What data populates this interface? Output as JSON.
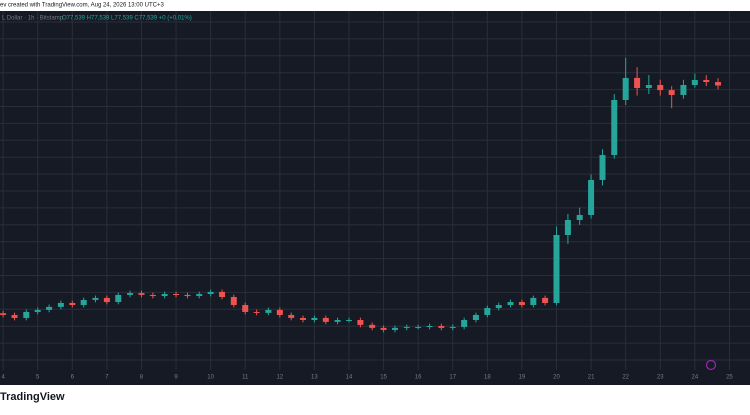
{
  "chart_data": {
    "type": "candlestick",
    "caption": "ev created with TradingView.com, Aug 24, 2026 13:00 UTC+3",
    "symbol": "L Dollar · 1h · Bitstamp",
    "ohlc_readout": "O77,539 H77,539 L77,539 C77,539 +0 (+0.01%)",
    "brand": "TradingView",
    "up_color": "#26a69a",
    "down_color": "#ef5350",
    "grid": true,
    "xlim": [
      3.91,
      25.45
    ],
    "ylim": [
      59500,
      82200
    ],
    "xticks": [
      4,
      5,
      6,
      7,
      8,
      9,
      10,
      11,
      12,
      13,
      14,
      15,
      16,
      17,
      18,
      19,
      20,
      21,
      22,
      23,
      24,
      25
    ],
    "x": [
      4,
      4.33,
      4.67,
      5,
      5.33,
      5.67,
      6,
      6.33,
      6.67,
      7,
      7.33,
      7.67,
      8,
      8.33,
      8.67,
      9,
      9.33,
      9.67,
      10,
      10.33,
      10.67,
      11,
      11.33,
      11.67,
      12,
      12.33,
      12.67,
      13,
      13.33,
      13.67,
      14,
      14.33,
      14.67,
      15,
      15.33,
      15.67,
      16,
      16.33,
      16.67,
      17,
      17.33,
      17.67,
      18,
      18.33,
      18.67,
      19,
      19.33,
      19.67,
      20,
      20.33,
      20.67,
      21,
      21.33,
      21.67,
      22,
      22.33,
      22.67,
      23,
      23.33,
      23.67,
      24,
      24.33,
      24.67
    ],
    "open": [
      63100,
      62990,
      62800,
      63180,
      63310,
      63500,
      63750,
      63620,
      63940,
      64070,
      63810,
      64260,
      64380,
      64260,
      64190,
      64320,
      64260,
      64190,
      64320,
      64450,
      64130,
      63620,
      63180,
      63120,
      63310,
      62990,
      62800,
      62670,
      62800,
      62550,
      62670,
      62670,
      62360,
      62170,
      62040,
      62170,
      62230,
      62230,
      62290,
      62170,
      62230,
      62670,
      62990,
      63430,
      63620,
      63810,
      63620,
      64070,
      63750,
      68060,
      69010,
      69330,
      71550,
      73130,
      76620,
      78020,
      77380,
      77570,
      77250,
      76940,
      77570,
      77890,
      77760
    ],
    "high": [
      63250,
      63140,
      63330,
      63460,
      63650,
      63900,
      63900,
      64090,
      64220,
      64220,
      64410,
      64530,
      64530,
      64410,
      64470,
      64470,
      64410,
      64470,
      64600,
      64600,
      64280,
      63770,
      63330,
      63460,
      63460,
      63140,
      62950,
      62950,
      62950,
      62820,
      62820,
      62820,
      62510,
      62320,
      62320,
      62380,
      62380,
      62440,
      62440,
      62380,
      62820,
      63140,
      63580,
      63770,
      63960,
      63960,
      64220,
      64220,
      68600,
      69400,
      69800,
      71900,
      73500,
      77000,
      79300,
      78700,
      78200,
      77900,
      77500,
      77900,
      78300,
      78200,
      78000
    ],
    "low": [
      62840,
      62650,
      62650,
      63030,
      63160,
      63350,
      63470,
      63470,
      63790,
      63660,
      63660,
      64110,
      64110,
      64040,
      64040,
      64110,
      64040,
      64040,
      64170,
      63980,
      63470,
      63030,
      62970,
      62970,
      62840,
      62650,
      62520,
      62520,
      62400,
      62400,
      62520,
      62210,
      62020,
      61890,
      61890,
      62020,
      62080,
      62080,
      62020,
      62020,
      62080,
      62520,
      62840,
      63280,
      63470,
      63470,
      63470,
      63600,
      63600,
      67500,
      68700,
      69100,
      71200,
      72900,
      76300,
      76900,
      77000,
      76900,
      76100,
      76700,
      77400,
      77500,
      77300
    ],
    "close": [
      62990,
      62800,
      63180,
      63310,
      63500,
      63750,
      63620,
      63940,
      64070,
      63810,
      64260,
      64380,
      64260,
      64190,
      64320,
      64260,
      64190,
      64320,
      64450,
      64130,
      63620,
      63180,
      63120,
      63310,
      62990,
      62800,
      62670,
      62800,
      62550,
      62670,
      62670,
      62360,
      62170,
      62040,
      62170,
      62230,
      62230,
      62290,
      62170,
      62230,
      62670,
      62990,
      63430,
      63620,
      63810,
      63620,
      64070,
      63750,
      68060,
      69010,
      69330,
      71550,
      73130,
      76620,
      78020,
      77380,
      77570,
      77250,
      76940,
      77570,
      77890,
      77760,
      77539
    ]
  }
}
